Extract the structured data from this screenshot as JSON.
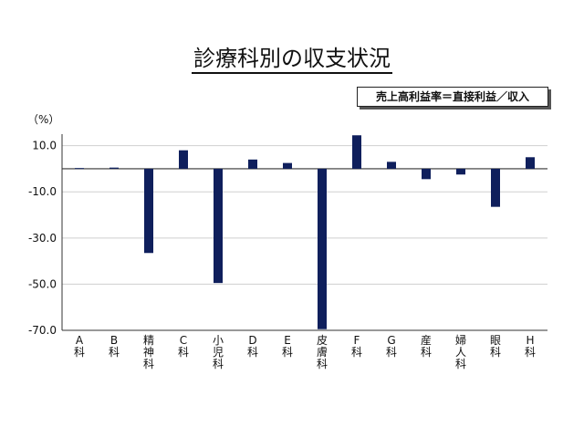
{
  "page": {
    "title": "診療科別の収支状況",
    "legend_text": "売上高利益率＝直接利益／収入",
    "unit_label": "（%）"
  },
  "colors": {
    "bar": "#0f1f5c",
    "axis": "#333333",
    "grid": "#cfcfcf"
  },
  "chart_data": {
    "type": "bar",
    "categories": [
      "A科",
      "B科",
      "精神科",
      "C科",
      "小児科",
      "D科",
      "E科",
      "皮膚科",
      "F科",
      "G科",
      "産科",
      "婦人科",
      "眼科",
      "H科"
    ],
    "values": [
      0.3,
      0.5,
      -36.5,
      8.0,
      -49.5,
      4.0,
      2.5,
      -69.5,
      14.5,
      3.0,
      -4.5,
      -2.5,
      -16.5,
      5.0
    ],
    "ylim": [
      -70,
      15
    ],
    "yticks": [
      10,
      -10,
      -30,
      -50,
      -70
    ],
    "ytick_labels": [
      "10.0",
      "-10.0",
      "-30.0",
      "-50.0",
      "-70.0"
    ],
    "grid": true,
    "title": "診療科別の収支状況",
    "ylabel": "（%）"
  }
}
